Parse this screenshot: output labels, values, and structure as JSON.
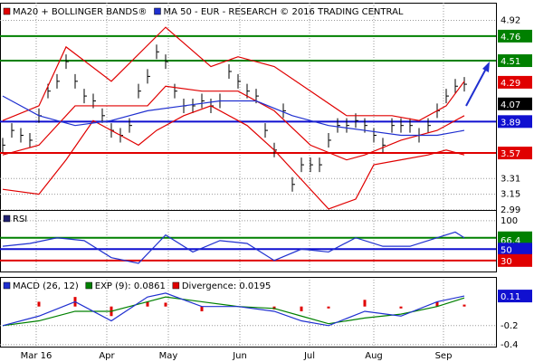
{
  "chart_data": [
    {
      "type": "line",
      "legend": [
        {
          "text": "MA20 + BOLLINGER BANDS®",
          "color": "#e00000"
        },
        {
          "text": "MA 50 - EUR - RESEARCH © 2016 TRADING CENTRAL",
          "color": "#2030d0"
        }
      ],
      "xlim": [
        -0.3,
        54.5
      ],
      "xticks": [
        {
          "value": 3.7,
          "label": "Mar 16"
        },
        {
          "value": 11.5,
          "label": "Apr"
        },
        {
          "value": 18.3,
          "label": "May"
        },
        {
          "value": 26.2,
          "label": "Jun"
        },
        {
          "value": 33.9,
          "label": "Jul"
        },
        {
          "value": 41,
          "label": "Aug"
        },
        {
          "value": 48.7,
          "label": "Sep"
        }
      ],
      "ylim": [
        2.99,
        5.1
      ],
      "yticks": [
        4.92,
        3.31,
        3.15,
        2.99
      ],
      "levels": [
        {
          "value": 4.76,
          "color": "#008000",
          "line": true
        },
        {
          "value": 4.51,
          "color": "#008000",
          "line": true
        },
        {
          "value": 4.29,
          "color": "#e00000",
          "line": false
        },
        {
          "value": 4.07,
          "color": "#000000",
          "line": false
        },
        {
          "value": 3.89,
          "color": "#1010d0",
          "line": true
        },
        {
          "value": 3.57,
          "color": "#e00000",
          "line": true
        }
      ],
      "series": [
        {
          "style": "bars",
          "color": "#000000",
          "x": [
            0,
            1,
            2,
            3,
            4,
            5,
            6,
            7,
            8,
            9,
            10,
            11,
            12,
            13,
            14,
            15,
            16,
            17,
            18,
            19,
            20,
            21,
            22,
            23,
            24,
            25,
            26,
            27,
            28,
            29,
            30,
            31,
            32,
            33,
            34,
            35,
            36,
            37,
            38,
            39,
            40,
            41,
            42,
            43,
            44,
            45,
            46,
            47,
            48,
            49,
            50,
            51
          ],
          "values": [
            3.65,
            3.8,
            3.75,
            3.7,
            3.95,
            4.2,
            4.3,
            4.5,
            4.3,
            4.15,
            4.1,
            3.95,
            3.8,
            3.75,
            3.85,
            4.2,
            4.35,
            4.6,
            4.5,
            4.2,
            4.05,
            4.05,
            4.1,
            4.05,
            4.1,
            4.4,
            4.3,
            4.2,
            4.15,
            3.8,
            3.6,
            4.0,
            3.25,
            3.45,
            3.45,
            3.45,
            3.7,
            3.85,
            3.85,
            3.9,
            3.85,
            3.75,
            3.65,
            3.85,
            3.85,
            3.85,
            3.75,
            3.85,
            4.0,
            4.15,
            4.25,
            4.27
          ]
        },
        {
          "style": "line",
          "color": "#e00000",
          "x": [
            0,
            4,
            7,
            12,
            18,
            23,
            26,
            30,
            34,
            38,
            43,
            46,
            49,
            51
          ],
          "values": [
            3.9,
            4.05,
            4.65,
            4.3,
            4.85,
            4.45,
            4.55,
            4.45,
            4.2,
            3.95,
            3.95,
            3.9,
            4.05,
            4.3
          ]
        },
        {
          "style": "line",
          "color": "#e00000",
          "x": [
            0,
            4,
            8,
            12,
            16,
            18,
            22,
            26,
            30,
            34,
            38,
            40,
            44,
            48,
            51
          ],
          "values": [
            3.55,
            3.65,
            4.05,
            4.05,
            4.05,
            4.25,
            4.2,
            4.2,
            4.0,
            3.65,
            3.5,
            3.55,
            3.7,
            3.8,
            3.95
          ]
        },
        {
          "style": "line",
          "color": "#e00000",
          "x": [
            0,
            4,
            7,
            10,
            13,
            15,
            17,
            20,
            23,
            27,
            30,
            33,
            36,
            39,
            41,
            44,
            47,
            49,
            51
          ],
          "values": [
            3.2,
            3.15,
            3.5,
            3.9,
            3.75,
            3.65,
            3.8,
            3.95,
            4.05,
            3.85,
            3.6,
            3.3,
            3.0,
            3.1,
            3.45,
            3.5,
            3.55,
            3.6,
            3.55
          ]
        },
        {
          "style": "line",
          "color": "#2030d0",
          "x": [
            0,
            4,
            8,
            12,
            16,
            20,
            24,
            28,
            32,
            36,
            40,
            44,
            48,
            51
          ],
          "values": [
            4.15,
            3.95,
            3.85,
            3.9,
            4.0,
            4.05,
            4.1,
            4.1,
            3.95,
            3.85,
            3.8,
            3.75,
            3.75,
            3.8
          ]
        }
      ]
    },
    {
      "type": "line",
      "legend": [
        {
          "text": "RSI",
          "color": "#202070"
        }
      ],
      "xlim": [
        -0.3,
        54.5
      ],
      "ylim": [
        10.6,
        119
      ],
      "yticks": [
        100
      ],
      "levels": [
        {
          "value": 70,
          "color": "#008000",
          "line": true
        },
        {
          "value": 66.4,
          "color": "#008000",
          "line": false
        },
        {
          "value": 50,
          "color": "#1010d0",
          "line": true
        },
        {
          "value": 30,
          "color": "#e00000",
          "line": true
        }
      ],
      "series": [
        {
          "style": "line",
          "color": "#2030d0",
          "x": [
            0,
            3,
            6,
            9,
            12,
            15,
            18,
            21,
            24,
            27,
            30,
            33,
            36,
            39,
            42,
            45,
            48,
            50,
            51
          ],
          "values": [
            55,
            60,
            70,
            65,
            35,
            25,
            75,
            45,
            65,
            60,
            30,
            50,
            45,
            70,
            55,
            55,
            70,
            80,
            70
          ]
        }
      ]
    },
    {
      "type": "line",
      "legend": [
        {
          "text": "MACD (26, 12)",
          "color": "#2030d0"
        },
        {
          "text": "EXP (9): 0.0861",
          "color": "#008000"
        },
        {
          "text": "Divergence: 0.0195",
          "color": "#e00000"
        }
      ],
      "xlim": [
        -0.3,
        54.5
      ],
      "ylim": [
        -0.42,
        0.31
      ],
      "yticks": [
        -0.2,
        -0.4
      ],
      "levels": [
        {
          "value": 0.11,
          "color": "#1010d0",
          "line": false
        }
      ],
      "series": [
        {
          "style": "hist",
          "color": "#e00000",
          "x": [
            0,
            4,
            8,
            12,
            16,
            18,
            22,
            26,
            30,
            33,
            36,
            40,
            44,
            48,
            51
          ],
          "values": [
            0,
            0.05,
            0.1,
            -0.1,
            0.05,
            0.04,
            -0.05,
            0,
            -0.03,
            -0.05,
            -0.02,
            0.07,
            -0.02,
            0.05,
            0.02
          ]
        },
        {
          "style": "line",
          "color": "#008000",
          "x": [
            0,
            4,
            8,
            12,
            16,
            18,
            22,
            26,
            30,
            33,
            36,
            40,
            44,
            48,
            51
          ],
          "values": [
            -0.2,
            -0.15,
            -0.05,
            -0.05,
            0.05,
            0.1,
            0.05,
            0.0,
            -0.02,
            -0.1,
            -0.18,
            -0.12,
            -0.08,
            0.0,
            0.09
          ]
        },
        {
          "style": "line",
          "color": "#2030d0",
          "x": [
            0,
            4,
            8,
            12,
            16,
            18,
            22,
            26,
            30,
            33,
            36,
            40,
            44,
            48,
            51
          ],
          "values": [
            -0.2,
            -0.1,
            0.05,
            -0.15,
            0.1,
            0.14,
            0.0,
            0.0,
            -0.05,
            -0.15,
            -0.2,
            -0.05,
            -0.1,
            0.05,
            0.11
          ]
        }
      ]
    }
  ]
}
